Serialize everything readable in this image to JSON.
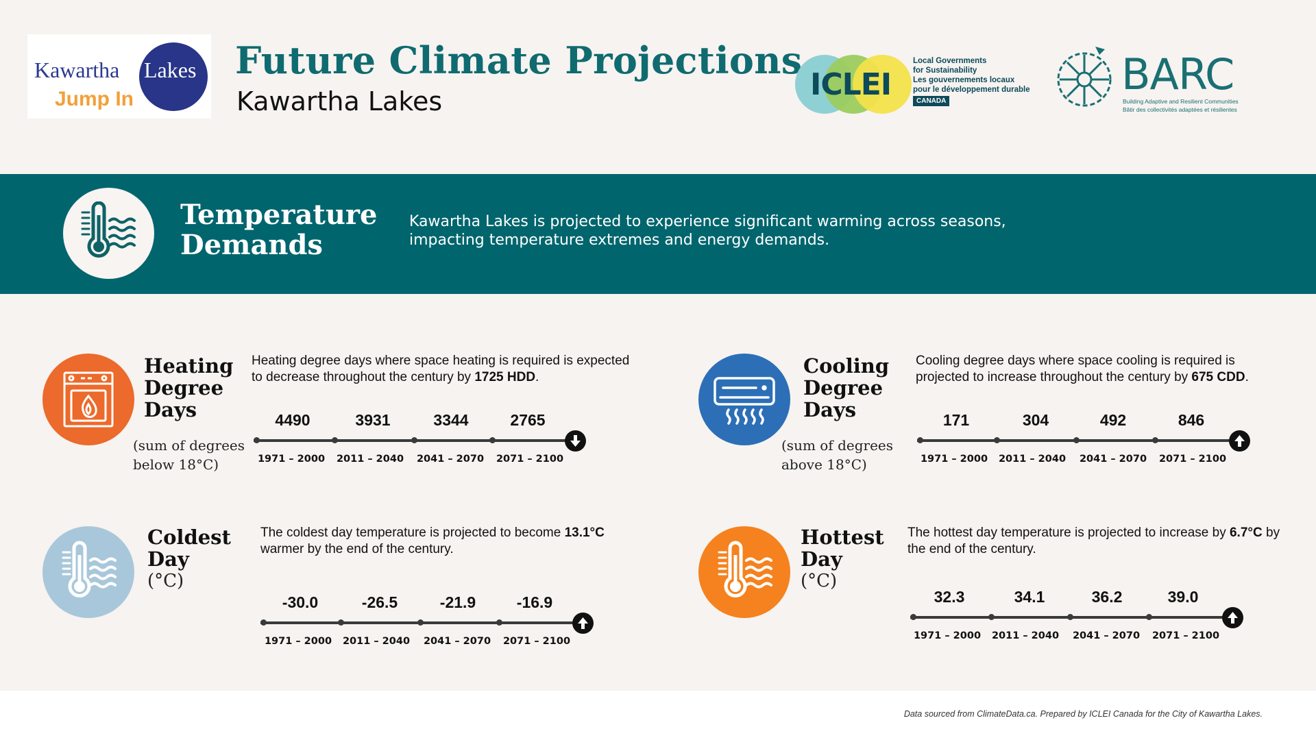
{
  "header": {
    "title": "Future Climate Projections",
    "subtitle": "Kawartha Lakes",
    "logo_kawartha": {
      "word1": "Kawartha",
      "word2": "Lakes",
      "tagline": "Jump In"
    },
    "logo_iclei": {
      "name": "ICLEI",
      "lines": [
        "Local Governments",
        "for Sustainability",
        "Les gouvernements locaux",
        "pour le développement durable"
      ],
      "badge": "CANADA"
    },
    "logo_barc": {
      "name": "BARC",
      "lines": [
        "Building Adaptive and Resilient Communities",
        "Bâtir des collectivités adaptées et résilientes"
      ]
    }
  },
  "banner": {
    "title_line1": "Temperature",
    "title_line2": "Demands",
    "description": "Kawartha Lakes is projected to experience significant warming across seasons, impacting temperature extremes and energy demands."
  },
  "colors": {
    "teal": "#00656d",
    "heating": "#ec6a2b",
    "cooling": "#2c6fb6",
    "coldest": "#a9c7da",
    "hottest": "#f5821f"
  },
  "metrics": {
    "heating": {
      "title": [
        "Heating",
        "Degree",
        "Days"
      ],
      "unit": [
        "(sum of degrees",
        "below 18°C)"
      ],
      "desc_pre": "Heating degree days where space heating is required is expected to decrease throughout the century by ",
      "desc_bold": "1725 HDD",
      "desc_post": ".",
      "values": [
        "4490",
        "3931",
        "3344",
        "2765"
      ],
      "trend": "down",
      "icon": "furnace-icon"
    },
    "cooling": {
      "title": [
        "Cooling",
        "Degree",
        "Days"
      ],
      "unit": [
        "(sum of degrees",
        "above 18°C)"
      ],
      "desc_pre": "Cooling degree days where space cooling is required is projected to increase throughout the century by ",
      "desc_bold": "675 CDD",
      "desc_post": ".",
      "values": [
        "171",
        "304",
        "492",
        "846"
      ],
      "trend": "up",
      "icon": "air-conditioner-icon"
    },
    "coldest": {
      "title": [
        "Coldest",
        "Day"
      ],
      "unit": [
        "(°C)"
      ],
      "desc_pre": "The coldest day temperature is projected to become ",
      "desc_bold": "13.1°C",
      "desc_post": " warmer by the end of the century.",
      "values": [
        "-30.0",
        "-26.5",
        "-21.9",
        "-16.9"
      ],
      "trend": "up",
      "icon": "thermometer-icon"
    },
    "hottest": {
      "title": [
        "Hottest",
        "Day"
      ],
      "unit": [
        "(°C)"
      ],
      "desc_pre": "The hottest day temperature is projected to increase by ",
      "desc_bold": "6.7°C",
      "desc_post": " by the end of the century.",
      "values": [
        "32.3",
        "34.1",
        "36.2",
        "39.0"
      ],
      "trend": "up",
      "icon": "thermometer-icon"
    }
  },
  "periods": [
    "1971 – 2000",
    "2011 – 2040",
    "2041 – 2070",
    "2071 – 2100"
  ],
  "footer": {
    "note": "Data sourced from ClimateData.ca. Prepared by ICLEI Canada for the City of Kawartha Lakes."
  }
}
